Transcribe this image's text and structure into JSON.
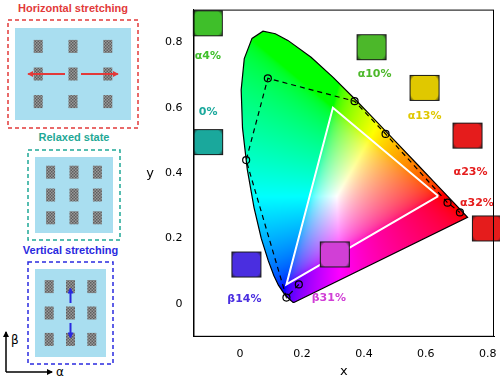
{
  "chart_data": {
    "type": "scatter",
    "x_label": "x",
    "y_label": "y",
    "xlim": [
      -0.15,
      0.82
    ],
    "xticks": [
      0,
      0.2,
      0.4,
      0.6,
      0.8
    ],
    "ylim": [
      -0.1,
      0.9
    ],
    "yticks": [
      0,
      0.2,
      0.4,
      0.6,
      0.8
    ],
    "grid": false,
    "series": [
      {
        "type": "area",
        "color": "#000000",
        "line_style": "solid",
        "x": [
          0.1741,
          0.1714,
          0.1644,
          0.1566,
          0.144,
          0.1241,
          0.1096,
          0.0913,
          0.0687,
          0.0454,
          0.0235,
          0.0082,
          0.0039,
          0.0139,
          0.0389,
          0.0743,
          0.1142,
          0.1547,
          0.2296,
          0.3016,
          0.3731,
          0.4441,
          0.5125,
          0.5752,
          0.627,
          0.6915,
          0.719,
          0.7347
        ],
        "y": [
          0.005,
          0.0051,
          0.0109,
          0.0177,
          0.0297,
          0.0578,
          0.0868,
          0.1327,
          0.2007,
          0.295,
          0.4127,
          0.5384,
          0.6548,
          0.7502,
          0.812,
          0.8338,
          0.8262,
          0.8059,
          0.7543,
          0.6923,
          0.6245,
          0.5547,
          0.4866,
          0.4242,
          0.3725,
          0.3083,
          0.2809,
          0.2653
        ]
      },
      {
        "type": "line",
        "color": "#ffffff",
        "line_style": "solid",
        "x": [
          0.64,
          0.3,
          0.15
        ],
        "y": [
          0.33,
          0.6,
          0.06
        ]
      },
      {
        "type": "line",
        "color": "#000000",
        "line_style": "dashed",
        "marker": "circle",
        "x": [
          0.19,
          0.15,
          0.02,
          0.09,
          0.37,
          0.47,
          0.67,
          0.71
        ],
        "y": [
          0.06,
          0.02,
          0.44,
          0.69,
          0.62,
          0.52,
          0.31,
          0.28
        ],
        "point_labels": [
          "β31%",
          "β14%",
          "0%",
          "α4%",
          "α10%",
          "α13%",
          "α23%",
          "α32%"
        ],
        "colors": [
          "#d13fd6",
          "#4a2ee0",
          "#1aa89c",
          "#3fbf2a",
          "#4cb82a",
          "#e0c800",
          "#e51c1c",
          "#e51c1c"
        ]
      }
    ]
  },
  "schematic": {
    "panels": [
      {
        "title": "Horizontal stretching",
        "direction": "horizontal",
        "color": "#e23a3a"
      },
      {
        "title": "Relaxed state",
        "direction": "none",
        "color": "#1fa896"
      },
      {
        "title": "Vertical stretching",
        "direction": "vertical",
        "color": "#2a2ae0"
      }
    ],
    "axes": {
      "horizontal": "α",
      "vertical": "β"
    }
  }
}
